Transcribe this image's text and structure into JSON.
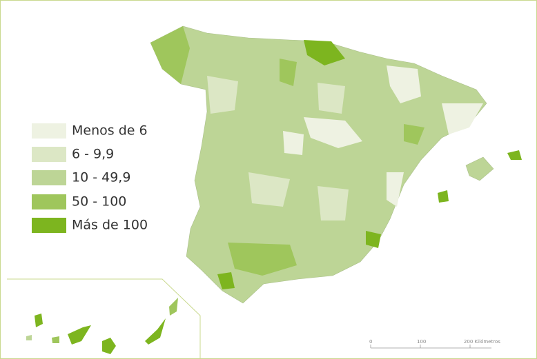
{
  "legend": [
    {
      "label": "Menos de 6",
      "color": "#eef2e2"
    },
    {
      "label": "6 - 9,9",
      "color": "#dce7c5"
    },
    {
      "label": "10 - 49,9",
      "color": "#bdd596"
    },
    {
      "label": "50 - 100",
      "color": "#9fc65c"
    },
    {
      "label": "Más de 100",
      "color": "#7db51f"
    }
  ],
  "scale_bar": {
    "labels": [
      "0",
      "100",
      "200 Kilómetros"
    ]
  }
}
